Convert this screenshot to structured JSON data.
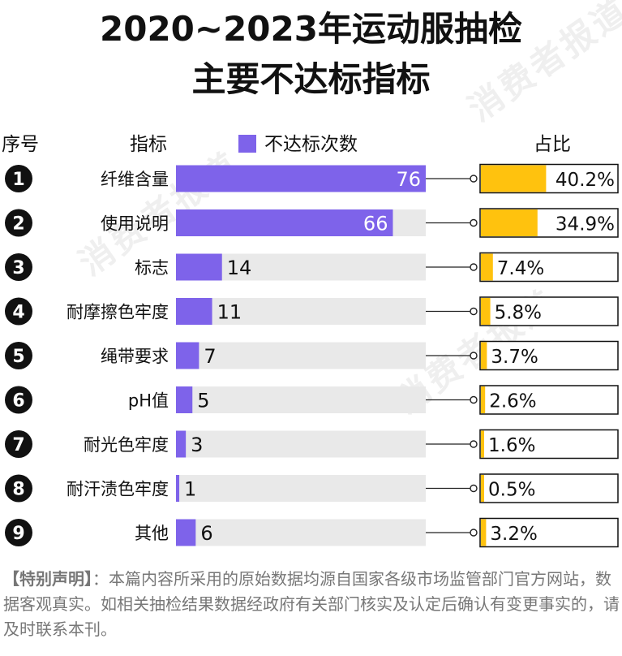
{
  "title_line1": "2020~2023年运动服抽检",
  "title_line2": "主要不达标指标",
  "headers": {
    "index": "序号",
    "indicator": "指标",
    "legend": "不达标次数",
    "share": "占比"
  },
  "watermark": "消费者报道",
  "colors": {
    "bar": "#7e63ea",
    "track": "#e9e9e9",
    "share": "#ffc20e",
    "badge": "#111111"
  },
  "chart_data": {
    "type": "bar",
    "categories": [
      "纤维含量",
      "使用说明",
      "标志",
      "耐摩擦色牢度",
      "绳带要求",
      "pH值",
      "耐光色牢度",
      "耐汗渍色牢度",
      "其他"
    ],
    "series": [
      {
        "name": "不达标次数",
        "values": [
          76,
          66,
          14,
          11,
          7,
          5,
          3,
          1,
          6
        ]
      }
    ],
    "share_labels": [
      "40.2%",
      "34.9%",
      "7.4%",
      "5.8%",
      "3.7%",
      "2.6%",
      "1.6%",
      "0.5%",
      "3.2%"
    ],
    "share_values": [
      40.2,
      34.9,
      7.4,
      5.8,
      3.7,
      2.6,
      1.6,
      0.5,
      3.2
    ],
    "xlim": [
      0,
      76
    ]
  },
  "note": {
    "label": "【特别声明】",
    "text": "：本篇内容所采用的原始数据均源自国家各级市场监管部门官方网站，数据客观真实。如相关抽检结果数据经政府有关部门核实及认定后确认有变更事实的，请及时联系本刊。"
  }
}
